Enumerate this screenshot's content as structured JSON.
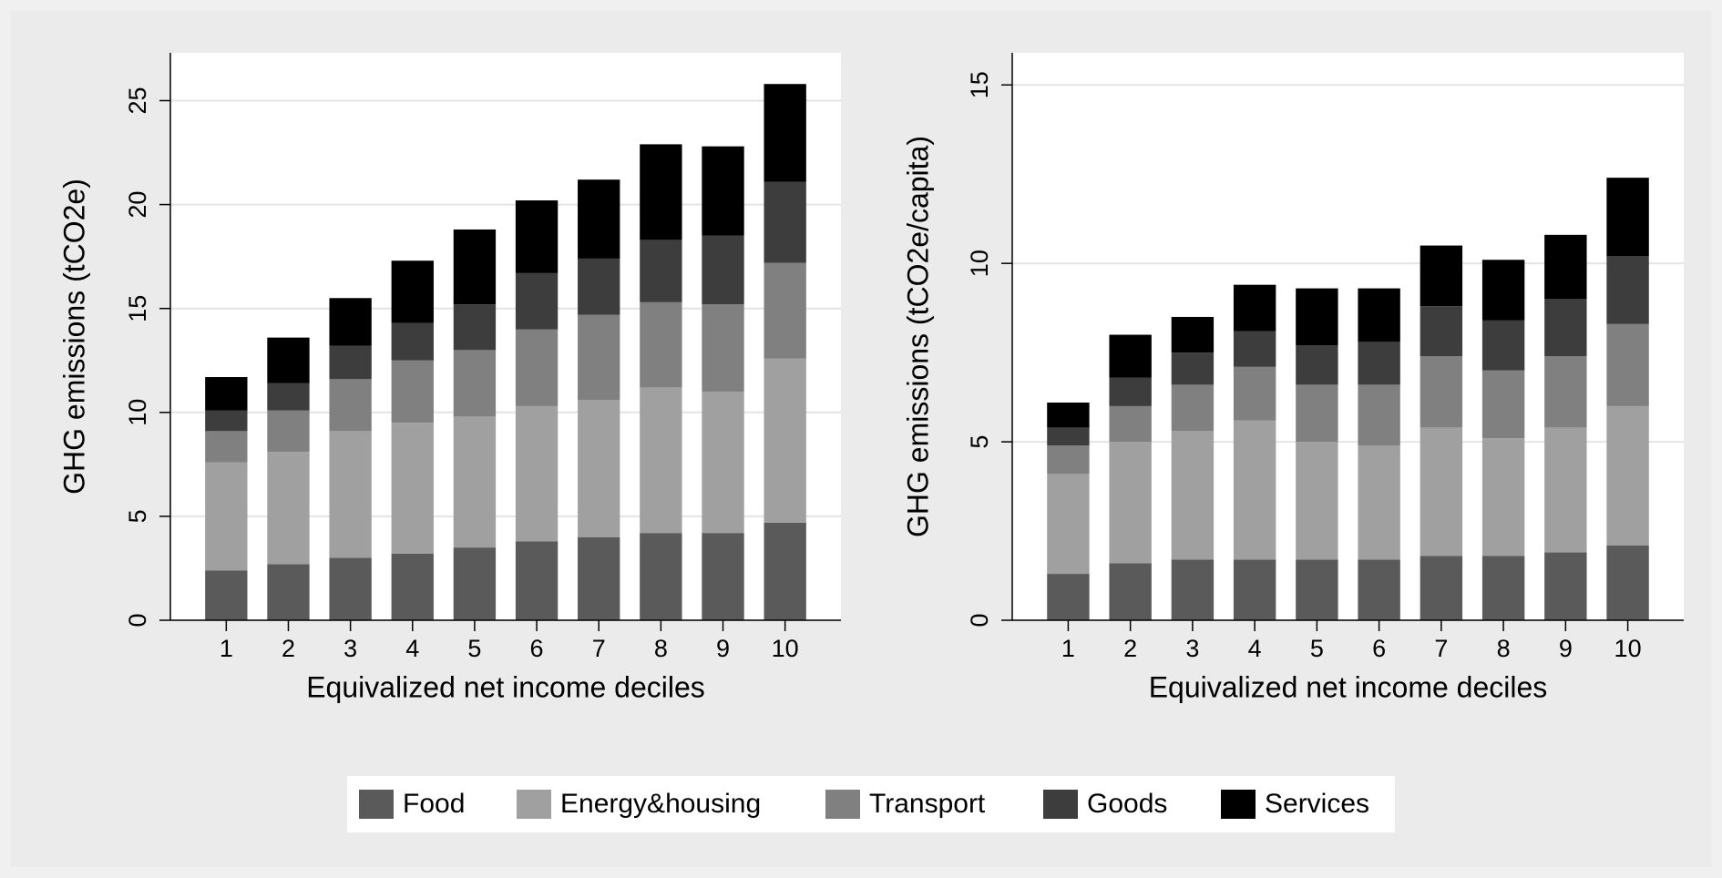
{
  "chart_data": [
    {
      "type": "stacked_bar",
      "xlabel": "Equivalized net income deciles",
      "ylabel": "GHG emissions (tCO2e)",
      "categories": [
        "1",
        "2",
        "3",
        "4",
        "5",
        "6",
        "7",
        "8",
        "9",
        "10"
      ],
      "ylim": [
        0,
        27.3
      ],
      "yticks": [
        0,
        5,
        10,
        15,
        20,
        25
      ],
      "grid": true,
      "series": [
        {
          "name": "Food",
          "color": "#5a5a5a",
          "values": [
            2.4,
            2.7,
            3.0,
            3.2,
            3.5,
            3.8,
            4.0,
            4.2,
            4.2,
            4.7
          ]
        },
        {
          "name": "Energy&housing",
          "color": "#a0a0a0",
          "values": [
            5.2,
            5.4,
            6.1,
            6.3,
            6.3,
            6.5,
            6.6,
            7.0,
            6.8,
            7.9
          ]
        },
        {
          "name": "Transport",
          "color": "#808080",
          "values": [
            1.5,
            2.0,
            2.5,
            3.0,
            3.2,
            3.7,
            4.1,
            4.1,
            4.2,
            4.6
          ]
        },
        {
          "name": "Goods",
          "color": "#3d3d3d",
          "values": [
            1.0,
            1.3,
            1.6,
            1.8,
            2.2,
            2.7,
            2.7,
            3.0,
            3.3,
            3.9
          ]
        },
        {
          "name": "Services",
          "color": "#000000",
          "values": [
            1.6,
            2.2,
            2.3,
            3.0,
            3.6,
            3.5,
            3.8,
            4.6,
            4.3,
            4.7
          ]
        }
      ]
    },
    {
      "type": "stacked_bar",
      "xlabel": "Equivalized net income deciles",
      "ylabel": "GHG emissions (tCO2e/capita)",
      "categories": [
        "1",
        "2",
        "3",
        "4",
        "5",
        "6",
        "7",
        "8",
        "9",
        "10"
      ],
      "ylim": [
        0,
        15.9
      ],
      "yticks": [
        0,
        5,
        10,
        15
      ],
      "grid": true,
      "series": [
        {
          "color": "#5a5a5a",
          "values": [
            1.3,
            1.6,
            1.7,
            1.7,
            1.7,
            1.7,
            1.8,
            1.8,
            1.9,
            2.1
          ]
        },
        {
          "color": "#a0a0a0",
          "values": [
            2.8,
            3.4,
            3.6,
            3.9,
            3.3,
            3.2,
            3.6,
            3.3,
            3.5,
            3.9
          ]
        },
        {
          "color": "#808080",
          "values": [
            0.8,
            1.0,
            1.3,
            1.5,
            1.6,
            1.7,
            2.0,
            1.9,
            2.0,
            2.3
          ]
        },
        {
          "color": "#3d3d3d",
          "values": [
            0.5,
            0.8,
            0.9,
            1.0,
            1.1,
            1.2,
            1.4,
            1.4,
            1.6,
            1.9
          ]
        },
        {
          "color": "#000000",
          "values": [
            0.7,
            1.2,
            1.0,
            1.3,
            1.6,
            1.5,
            1.7,
            1.7,
            1.8,
            2.2
          ]
        }
      ]
    }
  ]
}
